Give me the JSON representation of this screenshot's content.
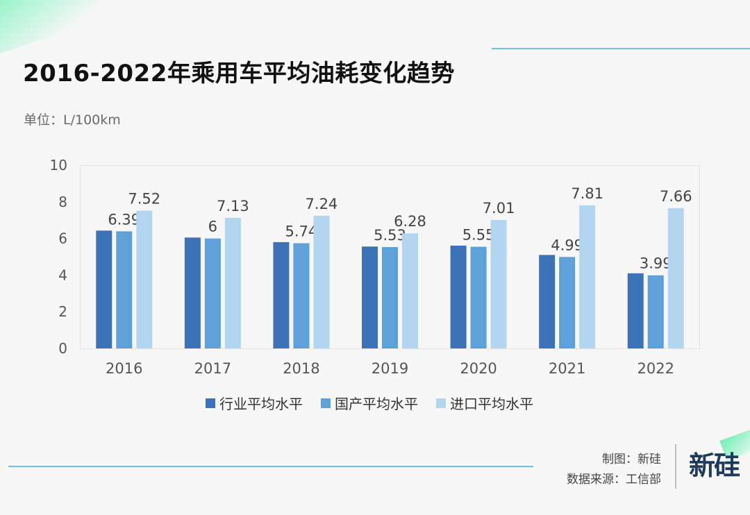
{
  "title": "2016-2022年乘用车平均油耗变化趋势",
  "unit": "单位：L/100km",
  "credit": {
    "made_by": "制图：新硅",
    "source": "数据来源：工信部"
  },
  "brand": "新硅",
  "chart_data": {
    "type": "bar",
    "categories": [
      "2016",
      "2017",
      "2018",
      "2019",
      "2020",
      "2021",
      "2022"
    ],
    "series": [
      {
        "name": "行业平均水平",
        "color": "#3c72b8",
        "values": [
          6.43,
          6.05,
          5.8,
          5.56,
          5.61,
          5.1,
          4.1
        ],
        "labeled": false
      },
      {
        "name": "国产平均水平",
        "color": "#5ea0d8",
        "values": [
          6.39,
          6.0,
          5.74,
          5.53,
          5.55,
          4.99,
          3.99
        ],
        "labeled": true
      },
      {
        "name": "进口平均水平",
        "color": "#b3d6f0",
        "values": [
          7.52,
          7.13,
          7.24,
          6.28,
          7.01,
          7.81,
          7.66
        ],
        "labeled": true
      }
    ],
    "data_labels": {
      "国产平均水平": [
        "6.39",
        "6",
        "5.74",
        "5.53",
        "5.55",
        "4.99",
        "3.99"
      ],
      "进口平均水平": [
        "7.52",
        "7.13",
        "7.24",
        "6.28",
        "7.01",
        "7.81",
        "7.66"
      ]
    },
    "yticks": [
      "0",
      "2",
      "4",
      "6",
      "8",
      "10"
    ],
    "ylim": [
      0,
      10
    ],
    "legend_position": "bottom",
    "grid": false
  }
}
